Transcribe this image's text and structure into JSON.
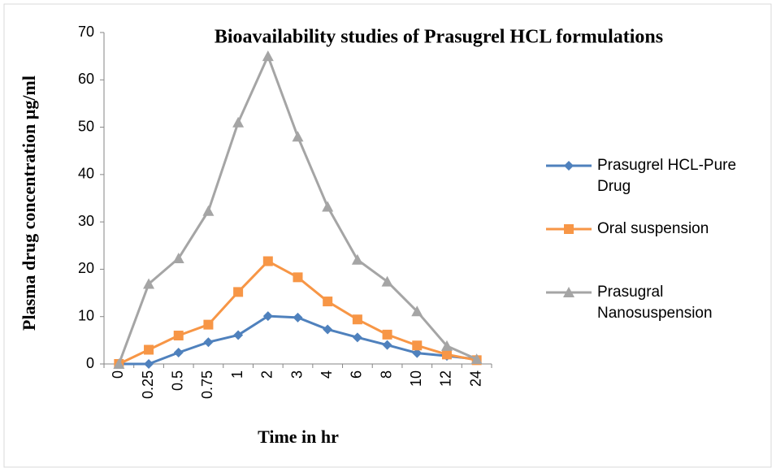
{
  "chart_data": {
    "type": "line",
    "title": "Bioavailability studies of Prasugrel HCL formulations",
    "x_label": "Time in hr",
    "y_label": "Plasma drug concentration µg/ml",
    "categories": [
      "0",
      "0.25",
      "0.5",
      "0.75",
      "1",
      "2",
      "3",
      "4",
      "6",
      "8",
      "10",
      "12",
      "24"
    ],
    "series": [
      {
        "name": "Prasugrel HCL-Pure Drug",
        "color": "#4F81BD",
        "marker": "diamond",
        "values": [
          0,
          0,
          2.4,
          4.6,
          6.1,
          10.1,
          9.8,
          7.3,
          5.6,
          4.0,
          2.3,
          1.7,
          1.0
        ]
      },
      {
        "name": "Oral suspension",
        "color": "#F79646",
        "marker": "square",
        "values": [
          0,
          3.0,
          6.0,
          8.3,
          15.2,
          21.7,
          18.3,
          13.2,
          9.4,
          6.2,
          3.9,
          2.0,
          0.8
        ]
      },
      {
        "name": "Prasugral Nanosuspension",
        "color": "#A5A5A5",
        "marker": "triangle",
        "values": [
          0,
          16.9,
          22.3,
          32.3,
          51.0,
          65.0,
          48.0,
          33.2,
          22.0,
          17.4,
          11.1,
          3.8,
          1.0
        ]
      }
    ],
    "ylim": [
      0,
      70
    ],
    "yticks": [
      0,
      10,
      20,
      30,
      40,
      50,
      60,
      70
    ],
    "grid": false,
    "legend": "right"
  }
}
